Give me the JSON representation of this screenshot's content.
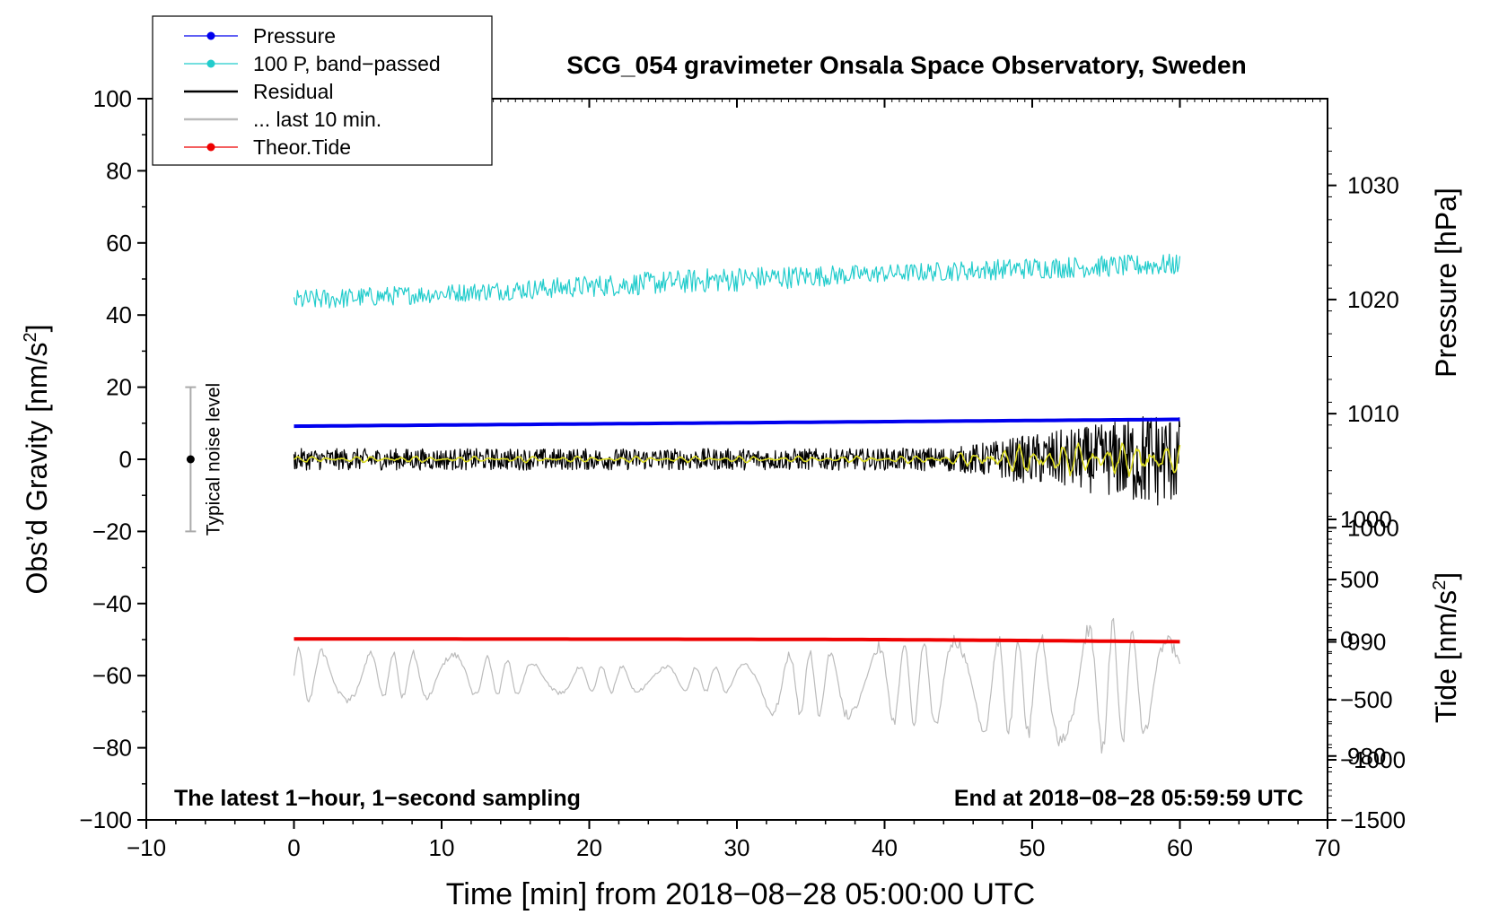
{
  "chart_data": {
    "type": "line",
    "title": "SCG_054 gravimeter Onsala Space Observatory, Sweden",
    "xlabel": "Time [min] from 2018−08−28 05:00:00 UTC",
    "ylabel_left_prefix": "Obs’d Gravity [nm/s",
    "ylabel_left_sup": "2",
    "ylabel_left_suffix": "]",
    "ylabel_pressure": "Pressure [hPa]",
    "ylabel_tide_prefix": "Tide [nm/s",
    "ylabel_tide_sup": "2",
    "ylabel_tide_suffix": "]",
    "xlim": [
      -10,
      70
    ],
    "ylim": [
      -100,
      100
    ],
    "pressure_lim": [
      974.4,
      1037.6
    ],
    "tide_lim": [
      -1500,
      4500
    ],
    "x_ticks": [
      "−10",
      "0",
      "10",
      "20",
      "30",
      "40",
      "50",
      "60",
      "70"
    ],
    "y_ticks": [
      "−100",
      "−80",
      "−60",
      "−40",
      "−20",
      "0",
      "20",
      "40",
      "60",
      "80",
      "100"
    ],
    "pressure_ticks": [
      "980",
      "990",
      "1000",
      "1010",
      "1020",
      "1030"
    ],
    "tide_ticks": [
      "−1500",
      "−1000",
      "−500",
      "0",
      "500",
      "1000"
    ],
    "annotation_left": "The latest 1−hour, 1−second sampling",
    "annotation_right": "End at 2018−08−28 05:59:59 UTC",
    "noise_bar": {
      "label": "Typical noise level",
      "x": -7,
      "center": 0,
      "low": -20,
      "high": 20
    },
    "legend": [
      {
        "label": "Pressure",
        "color": "#0000ee",
        "marker": true
      },
      {
        "label": "100 P, band−passed",
        "color": "#22cccc",
        "marker": true
      },
      {
        "label": "Residual",
        "color": "#000000",
        "marker": false
      },
      {
        "label": "... last 10 min.",
        "color": "#bbbbbb",
        "marker": false
      },
      {
        "label": "Theor.Tide",
        "color": "#ee0000",
        "marker": true
      }
    ],
    "colors": {
      "residual_smoothed": "#dddd22"
    },
    "series": [
      {
        "name": "Pressure",
        "axis": "pressure",
        "color": "#0000ee",
        "x": [
          0,
          10,
          20,
          30,
          40,
          50,
          60
        ],
        "values": [
          1008.9,
          1009.0,
          1009.1,
          1009.2,
          1009.3,
          1009.4,
          1009.5
        ]
      },
      {
        "name": "100 P, band−passed",
        "axis": "left",
        "color": "#22cccc",
        "x": [
          0,
          10,
          20,
          30,
          40,
          50,
          60
        ],
        "values": [
          44,
          46,
          48,
          50,
          51.5,
          53,
          54
        ],
        "amplitude": [
          3,
          2.5,
          3,
          3.5,
          2.5,
          3,
          3
        ]
      },
      {
        "name": "Residual",
        "axis": "left",
        "color": "#000000",
        "x": [
          0,
          10,
          20,
          30,
          40,
          45,
          50,
          55,
          58,
          60
        ],
        "values": [
          0,
          0,
          0,
          0,
          0,
          0,
          0,
          0,
          0,
          0
        ],
        "amplitude": [
          3,
          3,
          3,
          3,
          3,
          3.5,
          7,
          10,
          14,
          12
        ]
      },
      {
        "name": "Residual (smoothed)",
        "axis": "left",
        "color": "#dddd22",
        "x": [
          0,
          10,
          20,
          30,
          40,
          45,
          50,
          55,
          58,
          60
        ],
        "values": [
          0,
          0,
          0,
          0,
          0,
          0,
          0,
          0,
          0,
          0
        ],
        "amplitude": [
          0.8,
          0.8,
          0.8,
          0.8,
          0.8,
          1.5,
          4,
          4.5,
          4.5,
          4
        ]
      },
      {
        "name": "... last 10 min.",
        "axis": "left",
        "color": "#bbbbbb",
        "x": [
          0,
          10,
          20,
          30,
          32,
          40,
          45,
          50,
          55,
          60
        ],
        "values": [
          -60,
          -60,
          -61,
          -61,
          -62,
          -62,
          -62,
          -63,
          -63,
          -62
        ],
        "amplitude": [
          8,
          7,
          4,
          4,
          9,
          12,
          14,
          16,
          20,
          12
        ]
      },
      {
        "name": "Theor.Tide",
        "axis": "tide",
        "color": "#ee0000",
        "x": [
          0,
          10,
          20,
          30,
          40,
          50,
          60
        ],
        "values": [
          5,
          5,
          4,
          3,
          0,
          -8,
          -18
        ]
      }
    ]
  }
}
